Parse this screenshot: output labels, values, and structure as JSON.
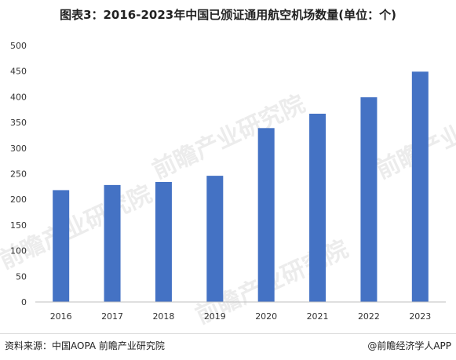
{
  "title": "图表3：2016-2023年中国已颁证通用航空机场数量(单位：个)",
  "watermark_text": "前瞻产业研究院",
  "footer": {
    "source": "资料来源：中国AOPA 前瞻产业研究院",
    "credit": "@前瞻经济学人APP"
  },
  "chart_data": {
    "type": "bar",
    "title": "图表3：2016-2023年中国已颁证通用航空机场数量(单位：个)",
    "categories": [
      "2016",
      "2017",
      "2018",
      "2019",
      "2020",
      "2021",
      "2022",
      "2023"
    ],
    "values": [
      218,
      228,
      234,
      246,
      339,
      367,
      399,
      449
    ],
    "yticks": [
      0,
      50,
      100,
      150,
      200,
      250,
      300,
      350,
      400,
      450,
      500
    ],
    "ylim": [
      0,
      500
    ],
    "xlabel": "",
    "ylabel": "",
    "grid": false,
    "legend": "none",
    "colors": {
      "bar": "#4472C4",
      "axis": "#bfbfbf",
      "tick_label": "#333333"
    }
  }
}
